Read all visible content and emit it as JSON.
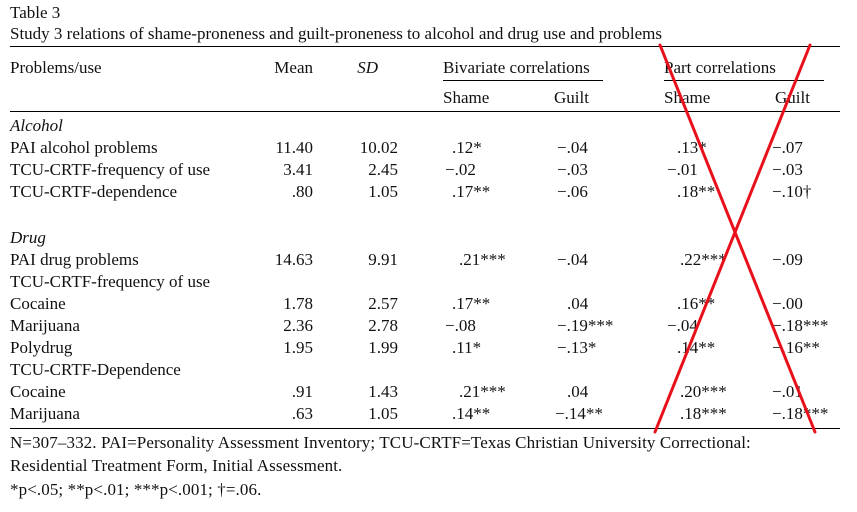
{
  "caption": {
    "label": "Table 3",
    "title": "Study 3 relations of shame-proneness and guilt-proneness to alcohol and drug use and problems"
  },
  "header": {
    "col_problems": "Problems/use",
    "col_mean": "Mean",
    "col_sd": "SD",
    "group_bivariate": "Bivariate correlations",
    "group_part": "Part correlations",
    "sub_shame": "Shame",
    "sub_guilt": "Guilt",
    "sub_shame2": "Shame",
    "sub_guilt2": "Guilt"
  },
  "rows": [
    {
      "label": "Alcohol",
      "section": true
    },
    {
      "label": "PAI alcohol problems",
      "mean": "11.40",
      "sd": "10.02",
      "shame": ".12*",
      "guilt": "−.04",
      "part_shame": ".13*",
      "part_guilt": "−.07"
    },
    {
      "label": "TCU-CRTF-frequency of use",
      "mean": "3.41",
      "sd": "2.45",
      "shame": "−.02",
      "guilt": "−.03",
      "part_shame": "−.01",
      "part_guilt": "−.03"
    },
    {
      "label": "TCU-CRTF-dependence",
      "mean": ".80",
      "sd": "1.05",
      "shame": ".17**",
      "guilt": "−.06",
      "part_shame": ".18**",
      "part_guilt": "−.10†"
    },
    {
      "label": "Drug",
      "section": true
    },
    {
      "label": "PAI drug problems",
      "mean": "14.63",
      "sd": "9.91",
      "shame": ".21***",
      "guilt": "−.04",
      "part_shame": ".22***",
      "part_guilt": "−.09"
    },
    {
      "label": "TCU-CRTF-frequency of use",
      "subhead": true
    },
    {
      "label": "Cocaine",
      "mean": "1.78",
      "sd": "2.57",
      "shame": ".17**",
      "guilt": ".04",
      "part_shame": ".16**",
      "part_guilt": "−.00"
    },
    {
      "label": "Marijuana",
      "mean": "2.36",
      "sd": "2.78",
      "shame": "−.08",
      "guilt": "−.19***",
      "part_shame": "−.04",
      "part_guilt": "−.18***"
    },
    {
      "label": "Polydrug",
      "mean": "1.95",
      "sd": "1.99",
      "shame": ".11*",
      "guilt": "−.13*",
      "part_shame": ".14**",
      "part_guilt": "−.16**"
    },
    {
      "label": "TCU-CRTF-Dependence",
      "subhead": true
    },
    {
      "label": "Cocaine",
      "mean": ".91",
      "sd": "1.43",
      "shame": ".21***",
      "guilt": ".04",
      "part_shame": ".20***",
      "part_guilt": "−.01"
    },
    {
      "label": "Marijuana",
      "mean": ".63",
      "sd": "1.05",
      "shame": ".14**",
      "guilt": "−.14**",
      "part_shame": ".18***",
      "part_guilt": "−.18***"
    }
  ],
  "footnotes": {
    "line1": "N=307–332. PAI=Personality Assessment Inventory; TCU-CRTF=Texas Christian University Correctional:",
    "line2": "Residential Treatment Form, Initial Assessment.",
    "line3": "*p<.05; **p<.01; ***p<.001; †=.06."
  },
  "annotation": {
    "mark": "red-cross",
    "color": "#e8101a"
  }
}
